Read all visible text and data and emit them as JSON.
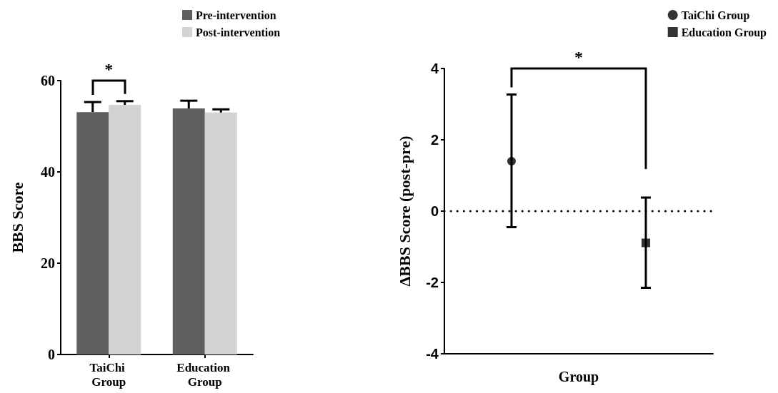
{
  "chart_data": [
    {
      "type": "bar",
      "ylabel": "BBS Score",
      "categories": [
        "TaiChi Group",
        "Education Group"
      ],
      "ylim": [
        0,
        60
      ],
      "yticks": [
        0,
        20,
        40,
        60
      ],
      "legend": "top",
      "grid": false,
      "annotations": [
        "*"
      ],
      "series": [
        {
          "name": "Pre-intervention",
          "color": "#5f5f5f",
          "values": [
            53.1,
            53.9
          ],
          "errors": [
            [
              53.1,
              55.3
            ],
            [
              53.9,
              55.6
            ]
          ]
        },
        {
          "name": "Post-intervention",
          "color": "#d3d3d3",
          "values": [
            54.7,
            53.0
          ],
          "errors": [
            [
              54.7,
              55.5
            ],
            [
              53.0,
              53.7
            ]
          ]
        }
      ]
    },
    {
      "type": "scatter",
      "xlabel": "Group",
      "ylabel": "ΔBBS Score (post-pre)",
      "categories": [
        null,
        null
      ],
      "ylim": [
        -4,
        4
      ],
      "yticks": [
        -4,
        -2,
        0,
        2,
        4
      ],
      "legend": "top right",
      "grid": false,
      "tick_labels": "y",
      "annotations": [
        "*"
      ],
      "ref_lines": [
        {
          "axis": "y",
          "value": 0,
          "line_style": "dotted"
        }
      ],
      "series": [
        {
          "name": "TaiChi Group",
          "color": "#000000",
          "marker": "circle",
          "values": [
            1.4,
            null
          ],
          "errors": [
            [
              -0.45,
              3.27
            ],
            null
          ]
        },
        {
          "name": "Education Group",
          "color": "#000000",
          "marker": "square",
          "values": [
            null,
            -0.89
          ],
          "errors": [
            null,
            [
              -2.15,
              0.38
            ]
          ]
        }
      ]
    }
  ]
}
